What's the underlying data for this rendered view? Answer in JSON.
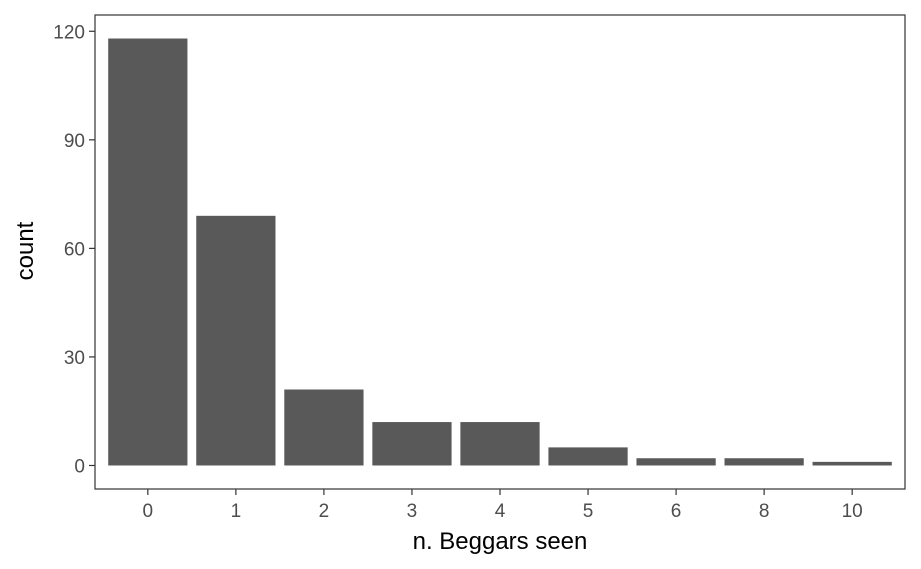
{
  "chart_data": {
    "type": "bar",
    "title": "",
    "xlabel": "n. Beggars seen",
    "ylabel": "count",
    "categories": [
      "0",
      "1",
      "2",
      "3",
      "4",
      "5",
      "6",
      "8",
      "10"
    ],
    "values": [
      118,
      69,
      21,
      12,
      12,
      5,
      2,
      2,
      1
    ],
    "ylim": [
      -6.5,
      124.5
    ],
    "yticks": [
      0,
      30,
      60,
      90,
      120
    ],
    "grid": false,
    "legend": "none",
    "bar_color": "#595959",
    "panel_border_color": "#333333"
  }
}
